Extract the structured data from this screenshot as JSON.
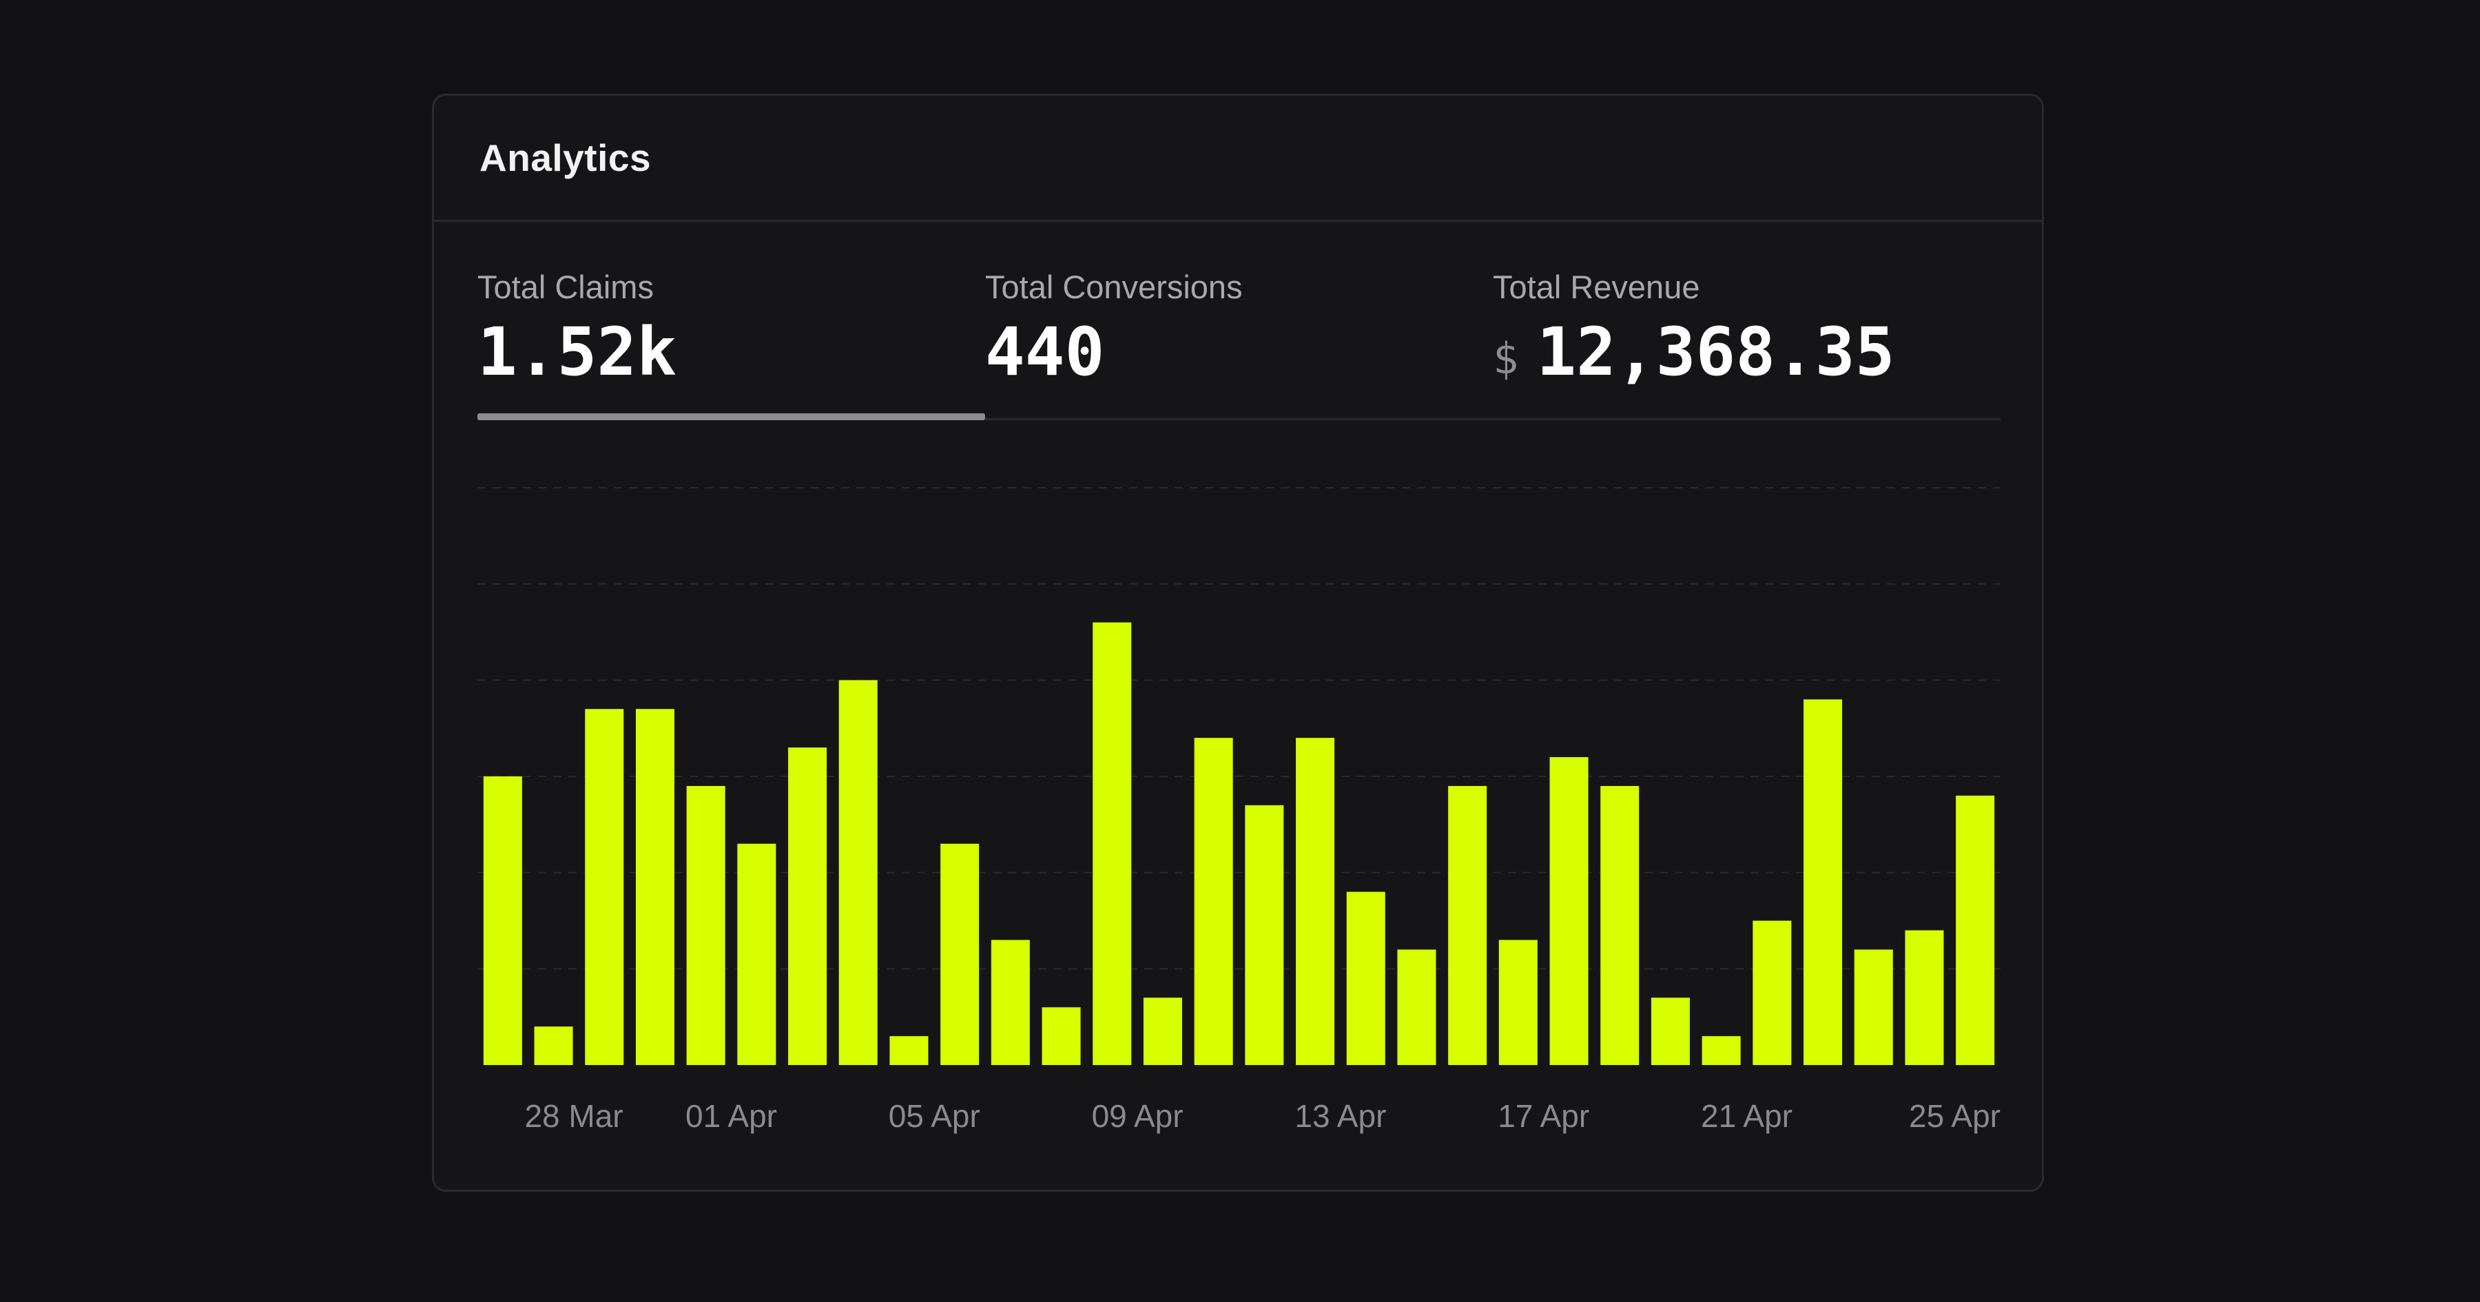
{
  "card": {
    "title": "Analytics"
  },
  "stats": [
    {
      "label": "Total Claims",
      "value": "1.52k",
      "currency": "",
      "selected": true
    },
    {
      "label": "Total Conversions",
      "value": "440",
      "currency": "",
      "selected": false
    },
    {
      "label": "Total Revenue",
      "value": "12,368.35",
      "currency": "$",
      "selected": false
    }
  ],
  "colors": {
    "bar": "#d8ff00",
    "background": "#111113",
    "card": "#151517",
    "gridline": "#2a2a2e"
  },
  "chart_data": {
    "type": "bar",
    "title": "",
    "xlabel": "",
    "ylabel": "",
    "categories": [
      "28 Mar",
      "29 Mar",
      "30 Mar",
      "31 Mar",
      "01 Apr",
      "02 Apr",
      "03 Apr",
      "04 Apr",
      "05 Apr",
      "06 Apr",
      "07 Apr",
      "08 Apr",
      "09 Apr",
      "10 Apr",
      "11 Apr",
      "12 Apr",
      "13 Apr",
      "14 Apr",
      "15 Apr",
      "16 Apr",
      "17 Apr",
      "18 Apr",
      "19 Apr",
      "20 Apr",
      "21 Apr",
      "22 Apr",
      "23 Apr",
      "24 Apr",
      "25 Apr",
      "26 Apr"
    ],
    "values": [
      30,
      4,
      37,
      37,
      29,
      23,
      33,
      40,
      3,
      23,
      13,
      6,
      46,
      7,
      34,
      27,
      34,
      18,
      12,
      29,
      13,
      32,
      29,
      7,
      3,
      15,
      38,
      12,
      14,
      28
    ],
    "tick_labels": [
      "28 Mar",
      "01 Apr",
      "05 Apr",
      "09 Apr",
      "13 Apr",
      "17 Apr",
      "21 Apr",
      "25 Apr"
    ],
    "ylim": [
      0,
      60
    ],
    "grid": true,
    "legend": "none"
  }
}
